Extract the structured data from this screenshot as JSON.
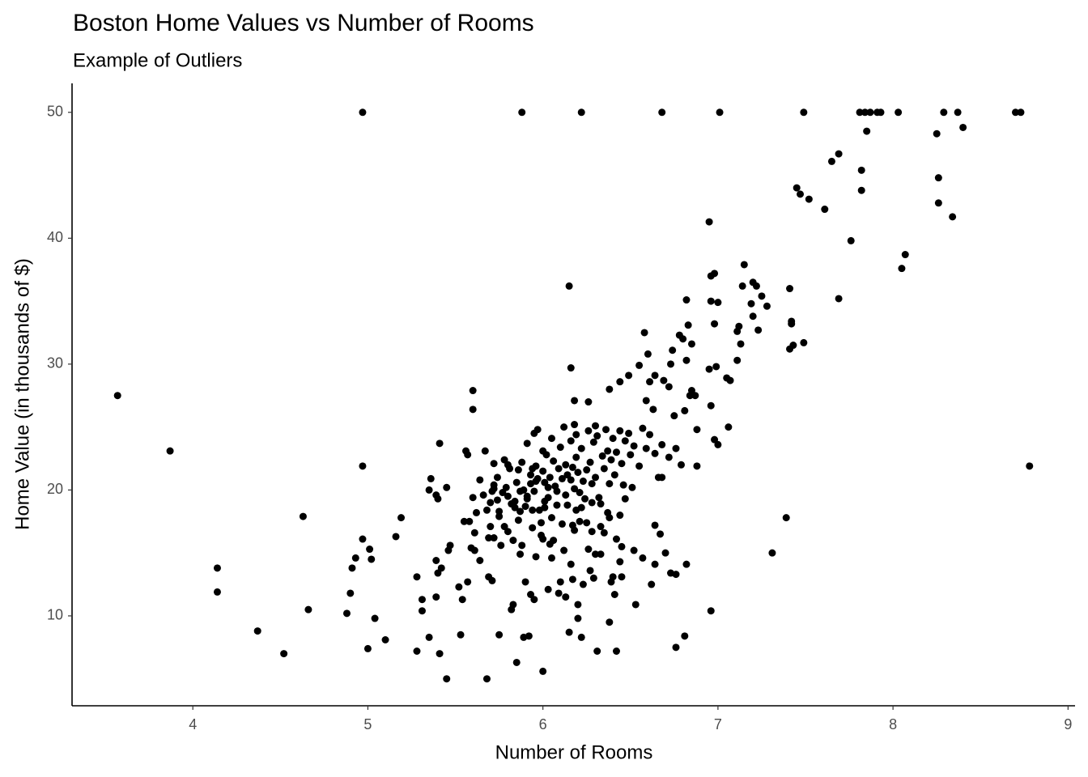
{
  "chart_data": {
    "type": "scatter",
    "title": "Boston Home Values vs Number of Rooms",
    "subtitle": "Example of Outliers",
    "xlabel": "Number of Rooms",
    "ylabel": "Home Value (in thousands of $)",
    "color": "#000000",
    "grid": false,
    "xlim": [
      3.31,
      9.04
    ],
    "ylim": [
      2.86,
      52.3
    ],
    "xticks": [
      4,
      5,
      6,
      7,
      8,
      9
    ],
    "yticks": [
      10,
      20,
      30,
      40,
      50
    ],
    "x": [
      4.97,
      5.88,
      6.22,
      6.68,
      7.01,
      7.49,
      7.81,
      7.84,
      7.87,
      7.91,
      7.93,
      8.03,
      8.29,
      8.37,
      8.7,
      8.73,
      7.85,
      8.25,
      8.4,
      7.69,
      7.65,
      7.82,
      8.26,
      7.82,
      7.45,
      7.47,
      7.52,
      7.61,
      8.26,
      8.34,
      6.95,
      7.76,
      8.07,
      8.05,
      7.15,
      6.98,
      6.96,
      6.15,
      7.69,
      7.41,
      7.2,
      7.22,
      7.14,
      7.25,
      7.28,
      7.19,
      6.82,
      7.0,
      6.96,
      7.42,
      7.42,
      7.2,
      6.98,
      6.83,
      7.12,
      7.11,
      7.23,
      6.78,
      6.58,
      6.8,
      7.43,
      7.41,
      7.49,
      6.85,
      7.13,
      6.74,
      6.6,
      6.82,
      7.11,
      6.73,
      6.55,
      6.16,
      6.99,
      6.95,
      7.05,
      7.07,
      6.64,
      6.49,
      6.44,
      6.61,
      6.69,
      6.72,
      6.38,
      6.85,
      6.87,
      6.84,
      5.6,
      6.18,
      6.26,
      6.59,
      6.96,
      5.6,
      6.63,
      6.81,
      6.75,
      6.3,
      7.06,
      6.18,
      6.88,
      6.98,
      7.0,
      6.68,
      6.76,
      6.68,
      6.88,
      6.79,
      6.72,
      3.57,
      3.87,
      4.14,
      4.14,
      4.37,
      4.52,
      4.63,
      4.66,
      4.97,
      4.97,
      5.01,
      5.02,
      4.93,
      4.91,
      4.9,
      4.88,
      5.04,
      5.0,
      5.1,
      5.16,
      5.19,
      8.78,
      7.39,
      7.31,
      6.96,
      5.28,
      5.31,
      5.31,
      5.28,
      5.35,
      5.35,
      5.36,
      5.39,
      5.41,
      5.4,
      5.45,
      5.39,
      5.4,
      5.39,
      5.41,
      5.45,
      5.46,
      5.47,
      5.42,
      5.52,
      5.53,
      5.54,
      5.56,
      5.57,
      5.55,
      5.58,
      5.57,
      5.59,
      5.61,
      5.61,
      5.64,
      5.64,
      5.68,
      5.67,
      5.69,
      5.7,
      5.72,
      5.72,
      5.69,
      5.71,
      5.75,
      5.75,
      5.76,
      5.78,
      5.8,
      5.81,
      5.82,
      5.83,
      5.85,
      5.86,
      5.87,
      5.89,
      5.9,
      5.92,
      5.93,
      5.95,
      5.96,
      6.0,
      6.0,
      6.01,
      6.03,
      6.04,
      6.05,
      6.09,
      6.1,
      6.13,
      6.15,
      6.16,
      6.17,
      6.17,
      6.2,
      6.2,
      6.22,
      6.22,
      6.23,
      6.26,
      6.27,
      6.29,
      6.3,
      6.31,
      6.33,
      6.33,
      6.35,
      6.37,
      6.38,
      6.39,
      6.4,
      6.41,
      6.42,
      6.42,
      6.44,
      6.44,
      6.45,
      6.45,
      6.47,
      6.51,
      6.52,
      6.53,
      6.57,
      6.64,
      6.64,
      6.67,
      6.7,
      6.73,
      6.76,
      6.76,
      6.81,
      6.82,
      6.62,
      5.6,
      5.62,
      5.66,
      5.7,
      5.72,
      5.74,
      5.75,
      5.79,
      5.8,
      5.84,
      5.85,
      5.86,
      5.87,
      5.88,
      5.89,
      5.9,
      5.91,
      5.91,
      5.93,
      5.93,
      5.94,
      5.95,
      5.95,
      5.96,
      5.97,
      5.97,
      5.99,
      6.0,
      6.0,
      6.01,
      6.02,
      6.03,
      6.04,
      6.05,
      6.06,
      6.07,
      6.08,
      6.09,
      6.1,
      6.11,
      6.12,
      6.13,
      6.13,
      6.14,
      6.16,
      6.17,
      6.18,
      6.19,
      6.19,
      6.2,
      6.21,
      6.22,
      6.23,
      6.25,
      6.26,
      6.27,
      6.28,
      6.29,
      6.3,
      6.31,
      6.32,
      6.34,
      6.35,
      6.36,
      6.37,
      6.38,
      6.39,
      6.4,
      6.41,
      6.42,
      6.44,
      6.45,
      6.46,
      6.47,
      6.49,
      6.5,
      6.52,
      6.55,
      6.57,
      6.59,
      6.61,
      6.64,
      6.66,
      5.71,
      5.74,
      5.77,
      5.8,
      5.82,
      5.84,
      5.87,
      5.91,
      5.94,
      5.96,
      5.98,
      6.01,
      6.03,
      6.05,
      6.08,
      6.11,
      6.14,
      6.16,
      6.19,
      6.21,
      6.24,
      6.28,
      6.33,
      6.38,
      5.68,
      5.72,
      5.78,
      5.83,
      5.88,
      5.94,
      5.99,
      6.06,
      6.12,
      6.18,
      6.25,
      6.28
    ],
    "values": [
      50,
      50,
      50,
      50,
      50,
      50,
      50,
      50,
      50,
      50,
      50,
      50,
      50,
      50,
      50,
      50,
      48.5,
      48.3,
      48.8,
      46.7,
      46.1,
      45.4,
      44.8,
      43.8,
      44,
      43.5,
      43.1,
      42.3,
      42.8,
      41.7,
      41.3,
      39.8,
      38.7,
      37.6,
      37.9,
      37.2,
      37.0,
      36.2,
      35.2,
      36,
      36.5,
      36.2,
      36.2,
      35.4,
      34.6,
      34.8,
      35.1,
      34.9,
      35,
      33.4,
      33.2,
      33.8,
      33.2,
      33.1,
      33,
      32.6,
      32.7,
      32.3,
      32.5,
      32,
      31.5,
      31.2,
      31.7,
      31.6,
      31.6,
      31.1,
      30.8,
      30.3,
      30.3,
      30,
      29.9,
      29.7,
      29.8,
      29.6,
      28.9,
      28.7,
      29.1,
      29.1,
      28.6,
      28.6,
      28.7,
      28.2,
      28,
      27.9,
      27.5,
      27.5,
      27.9,
      27.1,
      27,
      27.1,
      26.7,
      26.4,
      26.4,
      26.3,
      25.9,
      25.1,
      25,
      25.2,
      24.8,
      24,
      23.6,
      23.6,
      23.3,
      21,
      21.9,
      22,
      22.6,
      27.5,
      23.1,
      13.8,
      11.9,
      8.8,
      7.0,
      17.9,
      10.5,
      21.9,
      16.1,
      15.3,
      14.5,
      14.6,
      13.8,
      11.8,
      10.2,
      9.8,
      7.4,
      8.1,
      16.3,
      17.8,
      21.9,
      17.8,
      15.0,
      10.4,
      13.1,
      11.3,
      10.4,
      7.2,
      8.3,
      20,
      20.9,
      19.6,
      23.7,
      19.3,
      20.2,
      14.4,
      13.4,
      11.5,
      7.0,
      5.0,
      15.2,
      15.6,
      13.8,
      12.3,
      8.5,
      11.3,
      23.1,
      22.8,
      17.5,
      17.5,
      12.7,
      15.4,
      16.6,
      15.2,
      14.4,
      20.8,
      5.0,
      23.1,
      16.2,
      17.1,
      22.1,
      20.1,
      13.1,
      12.8,
      8.5,
      18.3,
      15.6,
      22.4,
      16.7,
      21.7,
      10.5,
      10.9,
      6.3,
      17.6,
      14.9,
      8.3,
      12.7,
      8.4,
      11.7,
      11.3,
      14.7,
      5.6,
      16.1,
      19.1,
      12.1,
      15.7,
      14.6,
      11.8,
      12.7,
      11.5,
      8.7,
      14.1,
      12.9,
      17.2,
      10.9,
      9.8,
      18.6,
      8.3,
      12.5,
      15.3,
      13.6,
      13.0,
      14.9,
      7.2,
      18.9,
      14.9,
      16.6,
      18.2,
      9.5,
      12.7,
      13.1,
      11.7,
      7.2,
      16.1,
      18.0,
      14.3,
      15.5,
      13.1,
      19.3,
      20.2,
      15.2,
      10.9,
      14.6,
      17.2,
      14.1,
      16.5,
      15.0,
      13.4,
      13.3,
      7.5,
      8.4,
      14.1,
      12.5,
      19.4,
      18.2,
      19.6,
      19.0,
      20.4,
      19.2,
      17.9,
      20.2,
      19.5,
      18.6,
      20.6,
      21.6,
      19.9,
      22.2,
      20.0,
      18.7,
      19.3,
      23.7,
      21.2,
      20.5,
      18.4,
      24.5,
      19.9,
      21.9,
      24.8,
      20.9,
      17.4,
      23.1,
      21.5,
      20.6,
      22.8,
      19.4,
      21.0,
      24.1,
      22.3,
      20.3,
      18.8,
      21.7,
      23.4,
      20.9,
      25.0,
      22.0,
      19.6,
      21.2,
      23.9,
      21.8,
      20.1,
      22.6,
      24.4,
      21.4,
      19.8,
      23.3,
      20.7,
      21.6,
      24.7,
      22.2,
      20.5,
      23.8,
      21.0,
      24.3,
      19.4,
      22.7,
      21.7,
      24.8,
      23.1,
      20.5,
      22.4,
      24.1,
      21.2,
      23.0,
      24.7,
      22.1,
      20.4,
      23.9,
      24.5,
      22.8,
      23.5,
      21.9,
      24.9,
      23.3,
      24.4,
      22.9,
      21.0,
      19.9,
      21.0,
      19.8,
      22.0,
      18.9,
      19.1,
      18.3,
      19.5,
      21.7,
      20.7,
      18.4,
      18.6,
      20.2,
      17.8,
      19.9,
      17.3,
      18.8,
      20.8,
      18.4,
      17.5,
      19.3,
      19.0,
      17.1,
      17.8,
      18.4,
      16.2,
      17.1,
      16.0,
      15.6,
      17.0,
      16.4,
      16.0,
      15.2,
      16.8,
      17.4,
      16.7
    ]
  }
}
